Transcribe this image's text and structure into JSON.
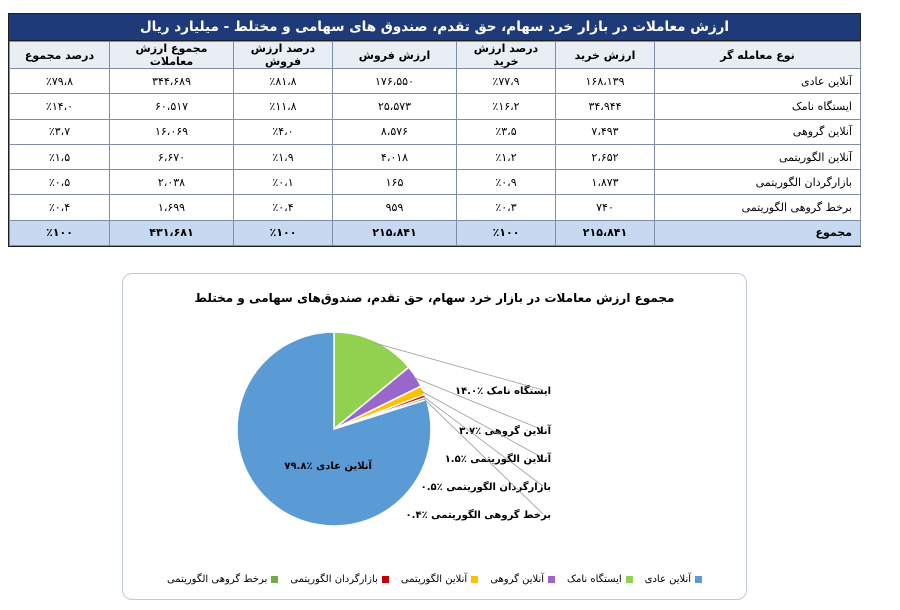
{
  "table": {
    "title": "ارزش معاملات در بازار خرد سهام، حق تقدم، صندوق های سهامی و مختلط - میلیارد ریال",
    "headers": [
      "نوع معامله گر",
      "ارزش خرید",
      "درصد ارزش خرید",
      "ارزش فروش",
      "درصد ارزش فروش",
      "مجموع ارزش معاملات",
      "درصد مجموع"
    ],
    "rows": [
      [
        "آنلاین عادی",
        "۱۶۸،۱۳۹",
        "٪۷۷،۹",
        "۱۷۶،۵۵۰",
        "٪۸۱،۸",
        "۳۴۴،۶۸۹",
        "٪۷۹،۸"
      ],
      [
        "ایستگاه نامک",
        "۳۴،۹۴۴",
        "٪۱۶،۲",
        "۲۵،۵۷۳",
        "٪۱۱،۸",
        "۶۰،۵۱۷",
        "٪۱۴،۰"
      ],
      [
        "آنلاین گروهی",
        "۷،۴۹۳",
        "٪۳،۵",
        "۸،۵۷۶",
        "٪۴،۰",
        "۱۶،۰۶۹",
        "٪۳،۷"
      ],
      [
        "آنلاین الگوریتمی",
        "۲،۶۵۲",
        "٪۱،۲",
        "۴،۰۱۸",
        "٪۱،۹",
        "۶،۶۷۰",
        "٪۱،۵"
      ],
      [
        "بازارگردان الگوریتمی",
        "۱،۸۷۳",
        "٪۰،۹",
        "۱۶۵",
        "٪۰،۱",
        "۲،۰۳۸",
        "٪۰،۵"
      ],
      [
        "برخط گروهی الگوریتمی",
        "۷۴۰",
        "٪۰،۳",
        "۹۵۹",
        "٪۰،۴",
        "۱،۶۹۹",
        "٪۰،۴"
      ]
    ],
    "total": [
      "مجموع",
      "۲۱۵،۸۴۱",
      "٪۱۰۰",
      "۲۱۵،۸۴۱",
      "٪۱۰۰",
      "۴۳۱،۶۸۱",
      "٪۱۰۰"
    ]
  },
  "chart_data": {
    "type": "pie",
    "title": "مجموع ارزش معاملات در بازار خرد سهام، حق تقدم، صندوق‌های سهامی و مختلط",
    "legend_position": "bottom",
    "slices": [
      {
        "name": "آنلاین عادی",
        "value": 79.8,
        "color": "#5b9bd5",
        "label": "آنلاین عادی ٪۷۹.۸"
      },
      {
        "name": "ایستگاه نامک",
        "value": 14.0,
        "color": "#92d050",
        "label": "ایستگاه نامک ٪۱۴.۰"
      },
      {
        "name": "آنلاین گروهی",
        "value": 3.7,
        "color": "#9966cc",
        "label": "آنلاین گروهی ٪۳.۷"
      },
      {
        "name": "آنلاین الگوریتمی",
        "value": 1.5,
        "color": "#ffc000",
        "label": "آنلاین الگوریتمی ٪۱.۵"
      },
      {
        "name": "بازارگردان الگوریتمی",
        "value": 0.5,
        "color": "#c00000",
        "label": "بازارگردان الگوریتمی ٪۰.۵"
      },
      {
        "name": "برخط گروهی الگوریتمی",
        "value": 0.4,
        "color": "#70ad47",
        "label": "برخط گروهی الگوریتمی ٪۰.۴"
      }
    ]
  }
}
